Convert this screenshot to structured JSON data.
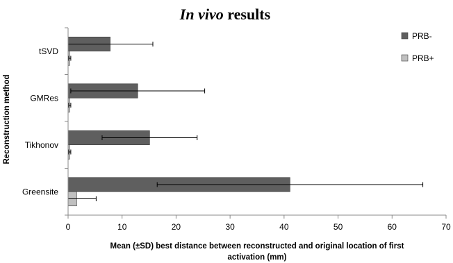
{
  "chart_data": {
    "type": "bar",
    "orientation": "horizontal",
    "title_italic": "In vivo",
    "title_rest": " results",
    "xlabel_line1": "Mean (±SD) best distance between reconstructed and original location of first",
    "xlabel_line2": "activation (mm)",
    "ylabel": "Reconstruction method",
    "categories": [
      "tSVD",
      "GMRes",
      "Tikhonov",
      "Greensite"
    ],
    "xlim": [
      0,
      70
    ],
    "xticks": [
      0,
      10,
      20,
      30,
      40,
      50,
      60,
      70
    ],
    "grid": false,
    "legend_position": "top-right",
    "series": [
      {
        "name": "PRB-",
        "color": "#5f5f5f",
        "values": [
          7.8,
          12.9,
          15.1,
          41.1
        ],
        "sd": [
          7.9,
          12.4,
          8.8,
          24.6
        ]
      },
      {
        "name": "PRB+",
        "color": "#c0c0c0",
        "values": [
          0.3,
          0.3,
          0.3,
          1.6
        ],
        "sd": [
          0.2,
          0.2,
          0.2,
          3.6
        ]
      }
    ]
  }
}
